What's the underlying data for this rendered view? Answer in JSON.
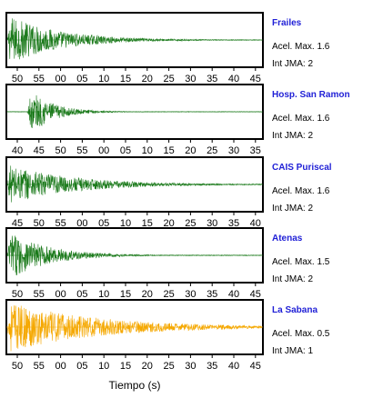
{
  "chart_data": {
    "type": "line",
    "xlabel": "Tiempo (s)",
    "panels": [
      {
        "station": "Frailes",
        "accel_label": "Acel. Max. 1.6",
        "jma_label": "Int JMA: 2",
        "color": "#1b7a1b",
        "tick_labels": [
          "50",
          "55",
          "00",
          "05",
          "10",
          "15",
          "20",
          "25",
          "30",
          "35",
          "40",
          "45"
        ],
        "trace": {
          "onset": 0.0,
          "peak": 1.0,
          "decay": 0.2,
          "noise": 0.015
        }
      },
      {
        "station": "Hosp. San Ramon",
        "accel_label": "Acel. Max. 1.6",
        "jma_label": "Int JMA: 2",
        "color": "#1b7a1b",
        "tick_labels": [
          "40",
          "45",
          "50",
          "55",
          "00",
          "05",
          "10",
          "15",
          "20",
          "25",
          "30",
          "35"
        ],
        "trace": {
          "onset": 0.08,
          "peak": 1.0,
          "decay": 0.09,
          "noise": 0.01
        }
      },
      {
        "station": "CAIS Puriscal",
        "accel_label": "Acel. Max. 1.6",
        "jma_label": "Int JMA: 2",
        "color": "#1b7a1b",
        "tick_labels": [
          "45",
          "50",
          "55",
          "00",
          "05",
          "10",
          "15",
          "20",
          "25",
          "30",
          "35",
          "40"
        ],
        "trace": {
          "onset": 0.0,
          "peak": 0.8,
          "decay": 0.25,
          "noise": 0.02
        }
      },
      {
        "station": "Atenas",
        "accel_label": "Acel. Max. 1.5",
        "jma_label": "Int JMA: 2",
        "color": "#1b7a1b",
        "tick_labels": [
          "50",
          "55",
          "00",
          "05",
          "10",
          "15",
          "20",
          "25",
          "30",
          "35",
          "40",
          "45"
        ],
        "trace": {
          "onset": 0.0,
          "peak": 1.0,
          "decay": 0.15,
          "noise": 0.015
        }
      },
      {
        "station": "La Sabana",
        "accel_label": "Acel. Max. 0.5",
        "jma_label": "Int JMA: 1",
        "color": "#f5a800",
        "tick_labels": [
          "50",
          "55",
          "00",
          "05",
          "10",
          "15",
          "20",
          "25",
          "30",
          "35",
          "40",
          "45"
        ],
        "trace": {
          "onset": 0.0,
          "peak": 1.0,
          "decay": 0.35,
          "noise": 0.06
        }
      }
    ]
  }
}
